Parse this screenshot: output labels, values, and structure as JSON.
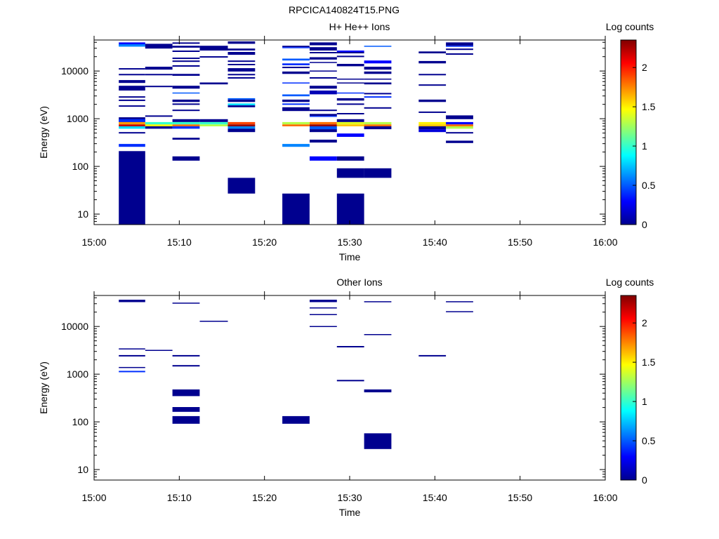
{
  "chart_data": {
    "type": "heatmap",
    "title": "RPCICA140824T15.PNG",
    "colorbar": {
      "label": "Log counts",
      "range": [
        0,
        2.35
      ],
      "ticks": [
        "0",
        "0.5",
        "1",
        "1.5",
        "2"
      ],
      "tick_values": [
        0,
        0.5,
        1,
        1.5,
        2
      ],
      "colormap": "jet"
    },
    "x_axis": {
      "label": "Time",
      "range_minutes": [
        0,
        60
      ],
      "ticks": [
        "15:00",
        "15:10",
        "15:20",
        "15:30",
        "15:40",
        "15:50",
        "16:00"
      ],
      "tick_minutes": [
        0,
        10,
        20,
        30,
        40,
        50,
        60
      ]
    },
    "y_axis": {
      "label": "Energy (eV)",
      "scale": "log",
      "range_log10": [
        0.78,
        4.65
      ],
      "ticks": [
        "10",
        "100",
        "1000",
        "10000"
      ],
      "tick_log10": [
        1,
        2,
        3,
        4
      ]
    },
    "time_bins_minutes": [
      [
        2.9,
        6.0
      ],
      [
        6.0,
        9.2
      ],
      [
        9.2,
        12.4
      ],
      [
        12.4,
        15.7
      ],
      [
        15.7,
        18.9
      ],
      [
        22.1,
        25.3
      ],
      [
        25.3,
        28.5
      ],
      [
        28.5,
        31.7
      ],
      [
        31.7,
        34.9
      ],
      [
        38.1,
        41.3
      ],
      [
        41.3,
        44.5
      ]
    ],
    "panels": [
      {
        "title": "H+ He++ Ions",
        "bars_note": "each bar: [time_bin_index, log10E_low, log10E_high, log_counts]",
        "bars": [
          [
            0,
            4.53,
            4.6,
            0.3
          ],
          [
            0,
            4.51,
            4.56,
            0.6
          ],
          [
            0,
            4.03,
            4.06,
            0
          ],
          [
            0,
            3.91,
            3.94,
            0
          ],
          [
            0,
            3.75,
            3.81,
            0
          ],
          [
            0,
            3.59,
            3.69,
            0
          ],
          [
            0,
            3.44,
            3.47,
            0
          ],
          [
            0,
            3.37,
            3.4,
            0
          ],
          [
            0,
            3.25,
            3.28,
            0
          ],
          [
            0,
            2.93,
            3.03,
            0
          ],
          [
            0,
            2.93,
            2.99,
            0.4
          ],
          [
            0,
            2.88,
            2.93,
            1.7
          ],
          [
            0,
            2.84,
            2.88,
            2.2
          ],
          [
            0,
            2.79,
            2.84,
            0.8
          ],
          [
            0,
            2.69,
            2.72,
            0
          ],
          [
            0,
            2.41,
            2.47,
            0.4
          ],
          [
            0,
            0.78,
            2.32,
            0
          ],
          [
            1,
            4.47,
            4.57,
            0
          ],
          [
            1,
            4.03,
            4.09,
            0
          ],
          [
            1,
            3.91,
            3.94,
            0
          ],
          [
            1,
            3.66,
            3.69,
            0
          ],
          [
            1,
            3.04,
            3.07,
            0
          ],
          [
            1,
            2.88,
            2.93,
            1.0
          ],
          [
            1,
            2.84,
            2.88,
            1.5
          ],
          [
            1,
            2.79,
            2.84,
            0
          ],
          [
            2,
            4.57,
            4.6,
            0
          ],
          [
            2,
            4.49,
            4.53,
            0
          ],
          [
            2,
            4.4,
            4.43,
            0
          ],
          [
            2,
            4.25,
            4.28,
            0
          ],
          [
            2,
            4.19,
            4.22,
            0
          ],
          [
            2,
            4.09,
            4.12,
            0
          ],
          [
            2,
            3.9,
            3.94,
            0
          ],
          [
            2,
            3.63,
            3.69,
            0
          ],
          [
            2,
            3.53,
            3.55,
            0.5
          ],
          [
            2,
            3.35,
            3.4,
            0
          ],
          [
            2,
            3.29,
            3.32,
            0
          ],
          [
            2,
            3.16,
            3.19,
            0
          ],
          [
            2,
            2.93,
            2.99,
            0
          ],
          [
            2,
            2.88,
            2.93,
            1.0
          ],
          [
            2,
            2.84,
            2.88,
            1.8
          ],
          [
            2,
            2.79,
            2.84,
            0.4
          ],
          [
            2,
            2.56,
            2.6,
            0
          ],
          [
            2,
            2.12,
            2.21,
            0
          ],
          [
            3,
            4.43,
            4.53,
            0
          ],
          [
            3,
            4.28,
            4.31,
            0
          ],
          [
            3,
            3.72,
            3.76,
            0
          ],
          [
            3,
            2.93,
            2.99,
            0
          ],
          [
            3,
            2.88,
            2.93,
            1.0
          ],
          [
            3,
            2.84,
            2.88,
            1.3
          ],
          [
            4,
            4.57,
            4.62,
            0
          ],
          [
            4,
            4.43,
            4.47,
            0
          ],
          [
            4,
            4.34,
            4.4,
            0
          ],
          [
            4,
            4.19,
            4.22,
            0
          ],
          [
            4,
            4.12,
            4.15,
            0
          ],
          [
            4,
            3.99,
            4.06,
            0
          ],
          [
            4,
            3.91,
            3.94,
            0
          ],
          [
            4,
            3.84,
            3.87,
            0
          ],
          [
            4,
            3.4,
            3.43,
            0.5
          ],
          [
            4,
            3.35,
            3.4,
            0
          ],
          [
            4,
            3.28,
            3.32,
            0.8
          ],
          [
            4,
            3.24,
            3.28,
            0
          ],
          [
            4,
            2.88,
            2.93,
            1.9
          ],
          [
            4,
            2.84,
            2.88,
            2.3
          ],
          [
            4,
            2.79,
            2.84,
            0.6
          ],
          [
            4,
            2.72,
            2.79,
            0
          ],
          [
            4,
            1.43,
            1.76,
            0
          ],
          [
            5,
            4.5,
            4.53,
            0
          ],
          [
            5,
            4.49,
            4.5,
            0.4
          ],
          [
            5,
            4.22,
            4.26,
            0.5
          ],
          [
            5,
            4.12,
            4.16,
            0.4
          ],
          [
            5,
            4.06,
            4.09,
            0
          ],
          [
            5,
            3.94,
            3.99,
            0
          ],
          [
            5,
            3.74,
            3.76,
            0.4
          ],
          [
            5,
            3.47,
            3.51,
            0.5
          ],
          [
            5,
            3.35,
            3.4,
            0
          ],
          [
            5,
            3.29,
            3.32,
            0.4
          ],
          [
            5,
            3.16,
            3.24,
            0
          ],
          [
            5,
            2.88,
            2.93,
            1.3
          ],
          [
            5,
            2.84,
            2.88,
            1.8
          ],
          [
            5,
            2.41,
            2.47,
            0.6
          ],
          [
            5,
            0.78,
            1.43,
            0
          ],
          [
            6,
            4.54,
            4.6,
            0
          ],
          [
            6,
            4.43,
            4.5,
            0
          ],
          [
            6,
            4.37,
            4.4,
            0
          ],
          [
            6,
            4.24,
            4.29,
            0
          ],
          [
            6,
            4.18,
            4.19,
            0
          ],
          [
            6,
            3.99,
            4.01,
            0
          ],
          [
            6,
            3.84,
            3.87,
            0
          ],
          [
            6,
            3.63,
            3.69,
            0
          ],
          [
            6,
            3.51,
            3.59,
            0.1
          ],
          [
            6,
            3.16,
            3.19,
            0
          ],
          [
            6,
            3.06,
            3.1,
            0
          ],
          [
            6,
            3.04,
            3.06,
            0.4
          ],
          [
            6,
            2.88,
            2.93,
            1.8
          ],
          [
            6,
            2.84,
            2.88,
            2.3
          ],
          [
            6,
            2.78,
            2.84,
            0.5
          ],
          [
            6,
            2.72,
            2.78,
            0
          ],
          [
            6,
            2.5,
            2.56,
            0
          ],
          [
            6,
            2.12,
            2.21,
            0.3
          ],
          [
            7,
            4.4,
            4.43,
            0.3
          ],
          [
            7,
            4.37,
            4.4,
            0
          ],
          [
            7,
            4.29,
            4.32,
            0
          ],
          [
            7,
            4.1,
            4.15,
            0
          ],
          [
            7,
            3.82,
            3.84,
            0
          ],
          [
            7,
            3.74,
            3.76,
            0
          ],
          [
            7,
            3.53,
            3.55,
            0.4
          ],
          [
            7,
            3.38,
            3.43,
            0
          ],
          [
            7,
            3.29,
            3.32,
            0
          ],
          [
            7,
            3.09,
            3.12,
            0
          ],
          [
            7,
            2.93,
            2.99,
            0
          ],
          [
            7,
            2.88,
            2.93,
            1.4
          ],
          [
            7,
            2.84,
            2.88,
            1.6
          ],
          [
            7,
            2.62,
            2.69,
            0.3
          ],
          [
            7,
            2.12,
            2.21,
            0
          ],
          [
            7,
            1.76,
            1.96,
            0
          ],
          [
            7,
            0.78,
            1.43,
            0
          ],
          [
            8,
            4.51,
            4.53,
            0.5
          ],
          [
            8,
            4.16,
            4.22,
            0.3
          ],
          [
            8,
            4.03,
            4.09,
            0
          ],
          [
            8,
            3.94,
            3.99,
            0
          ],
          [
            8,
            3.82,
            3.84,
            0
          ],
          [
            8,
            3.72,
            3.76,
            0
          ],
          [
            8,
            3.51,
            3.54,
            0
          ],
          [
            8,
            3.44,
            3.47,
            0.4
          ],
          [
            8,
            3.21,
            3.24,
            0
          ],
          [
            8,
            2.88,
            2.93,
            1.3
          ],
          [
            8,
            2.84,
            2.88,
            1.8
          ],
          [
            8,
            2.78,
            2.84,
            0
          ],
          [
            8,
            1.76,
            1.96,
            0
          ],
          [
            9,
            4.37,
            4.41,
            0
          ],
          [
            9,
            4.16,
            4.21,
            0
          ],
          [
            9,
            3.91,
            3.94,
            0
          ],
          [
            9,
            3.69,
            3.72,
            0
          ],
          [
            9,
            3.35,
            3.4,
            0
          ],
          [
            9,
            3.12,
            3.15,
            0
          ],
          [
            9,
            2.88,
            2.93,
            1.5
          ],
          [
            9,
            2.84,
            2.88,
            1.6
          ],
          [
            9,
            2.78,
            2.84,
            0
          ],
          [
            9,
            2.72,
            2.78,
            0.2
          ],
          [
            10,
            4.53,
            4.6,
            0
          ],
          [
            10,
            4.51,
            4.53,
            0.4
          ],
          [
            10,
            4.44,
            4.47,
            0
          ],
          [
            10,
            4.34,
            4.37,
            0
          ],
          [
            10,
            2.99,
            3.07,
            0
          ],
          [
            10,
            2.88,
            2.93,
            0.3
          ],
          [
            10,
            2.84,
            2.88,
            1.8
          ],
          [
            10,
            2.79,
            2.84,
            1.3
          ],
          [
            10,
            2.69,
            2.72,
            0
          ],
          [
            10,
            2.49,
            2.54,
            0
          ]
        ]
      },
      {
        "title": "Other Ions",
        "bars_note": "each bar: [time_bin_index, log10E_low, log10E_high, log_counts]",
        "bars": [
          [
            0,
            4.51,
            4.56,
            0
          ],
          [
            0,
            3.53,
            3.54,
            0
          ],
          [
            0,
            3.37,
            3.4,
            0
          ],
          [
            0,
            3.13,
            3.15,
            0
          ],
          [
            0,
            3.04,
            3.07,
            0.4
          ],
          [
            1,
            3.49,
            3.51,
            0
          ],
          [
            2,
            4.49,
            4.5,
            0
          ],
          [
            2,
            3.37,
            3.4,
            0
          ],
          [
            2,
            3.16,
            3.19,
            0
          ],
          [
            2,
            2.54,
            2.68,
            0
          ],
          [
            2,
            2.21,
            2.31,
            0
          ],
          [
            2,
            1.96,
            2.12,
            0
          ],
          [
            3,
            4.1,
            4.12,
            0
          ],
          [
            5,
            1.96,
            2.12,
            0
          ],
          [
            6,
            4.51,
            4.56,
            0
          ],
          [
            6,
            4.38,
            4.4,
            0
          ],
          [
            6,
            4.24,
            4.26,
            0
          ],
          [
            6,
            3.99,
            4.01,
            0
          ],
          [
            7,
            3.56,
            3.59,
            0
          ],
          [
            7,
            2.85,
            2.88,
            0
          ],
          [
            8,
            4.51,
            4.53,
            0
          ],
          [
            8,
            3.82,
            3.84,
            0
          ],
          [
            8,
            2.62,
            2.68,
            0
          ],
          [
            8,
            1.43,
            1.76,
            0
          ],
          [
            9,
            3.37,
            3.4,
            0
          ],
          [
            10,
            4.51,
            4.53,
            0
          ],
          [
            10,
            4.31,
            4.32,
            0
          ]
        ]
      }
    ]
  }
}
